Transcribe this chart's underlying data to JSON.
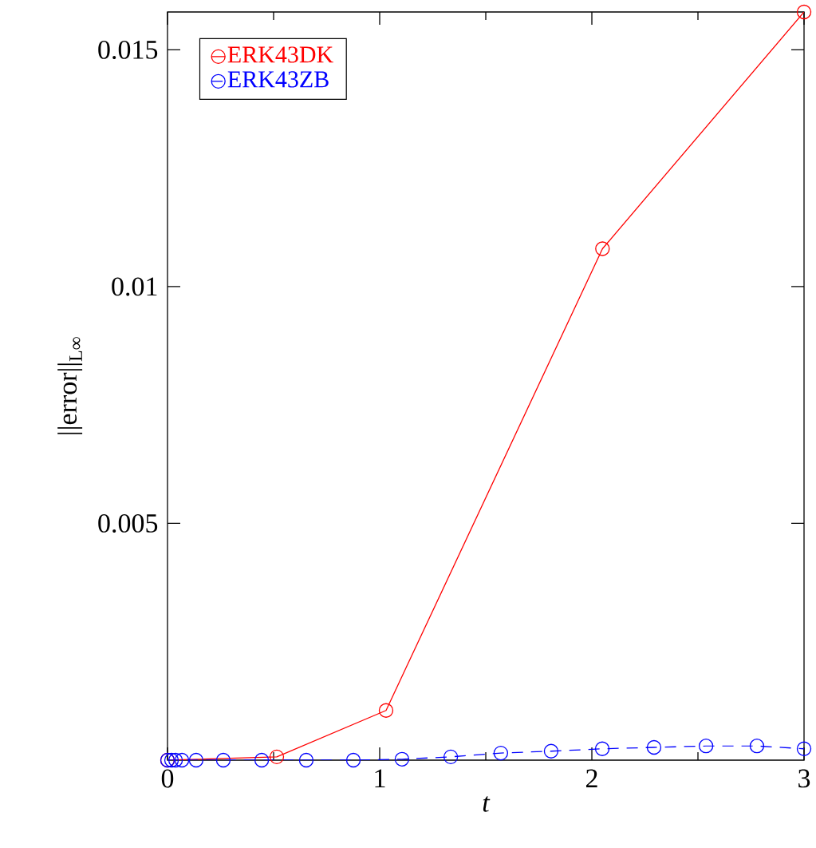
{
  "chart_data": {
    "type": "line",
    "xlabel": "t",
    "ylabel": "||error||$_{L∞}$",
    "xlim": [
      0,
      3
    ],
    "ylim": [
      0,
      0.0158
    ],
    "xticks": [
      0,
      1,
      2,
      3
    ],
    "yticks": [
      0.005,
      0.01,
      0.015
    ],
    "legend": "top left",
    "marker": "circle",
    "grid": false,
    "series": [
      {
        "name": "ERK43DK",
        "color": "#ff0000",
        "line_style": "solid",
        "x": [
          0,
          0.515,
          1.03,
          2.05,
          3.0
        ],
        "values": [
          0,
          7e-05,
          0.00105,
          0.0108,
          0.0158
        ]
      },
      {
        "name": "ERK43ZB",
        "color": "#0000ff",
        "line_style": "dashed",
        "x": [
          0,
          0.019,
          0.038,
          0.068,
          0.135,
          0.263,
          0.444,
          0.654,
          0.876,
          1.105,
          1.335,
          1.571,
          1.808,
          2.049,
          2.293,
          2.538,
          2.778,
          3.0
        ],
        "values": [
          0,
          0,
          0,
          0,
          0,
          0,
          0,
          0,
          0,
          2e-05,
          7e-05,
          0.00015,
          0.00019,
          0.00024,
          0.00027,
          0.0003,
          0.0003,
          0.00024
        ]
      }
    ]
  }
}
